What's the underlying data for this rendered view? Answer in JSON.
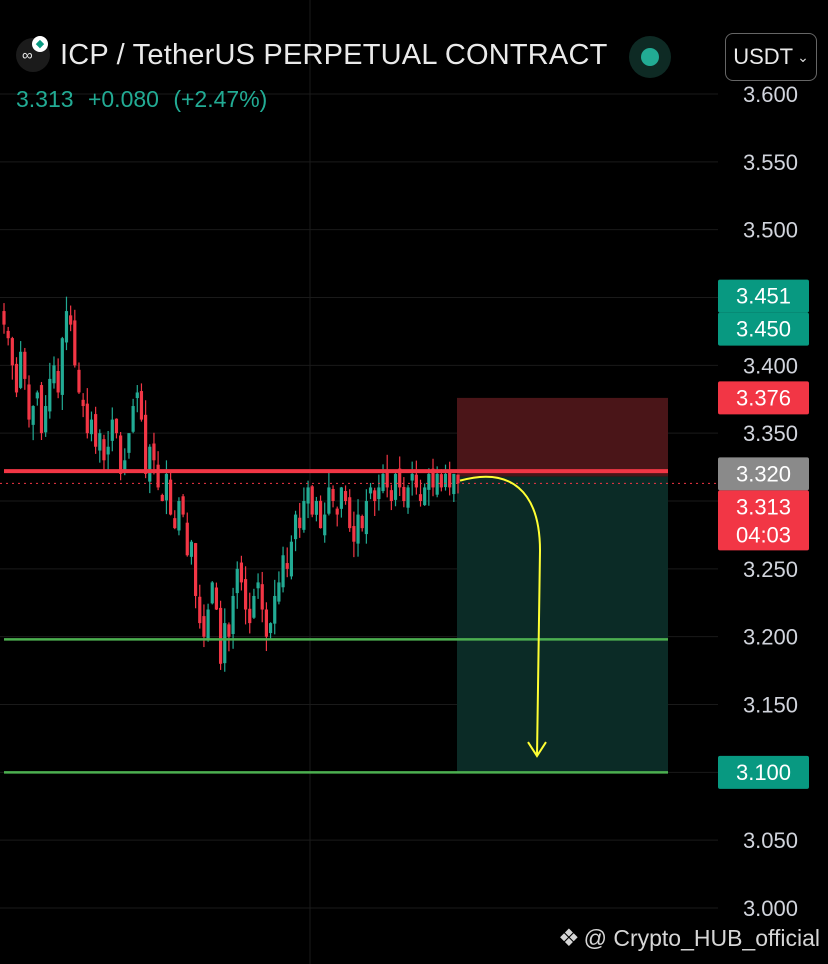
{
  "header": {
    "pair_title": "ICP / TetherUS PERPETUAL CONTRACT",
    "currency": "USDT",
    "last_price": "3.313",
    "change": "+0.080",
    "change_pct": "(+2.47%)"
  },
  "watermark": "@ Crypto_HUB_official",
  "colors": {
    "background": "#000000",
    "up": "#22ab94",
    "down": "#f23645",
    "target_line": "#4caf50",
    "arrow": "#ffff33",
    "risk_zone": "#4a1518",
    "reward_zone": "#0b2b26"
  },
  "chart_data": {
    "type": "candlestick",
    "y_axis": {
      "ylim": [
        3.0,
        3.62
      ],
      "ticks": [
        "3.000",
        "3.050",
        "3.100",
        "3.150",
        "3.200",
        "3.250",
        "3.300",
        "3.350",
        "3.400",
        "3.450",
        "3.500",
        "3.550",
        "3.600"
      ]
    },
    "price_labels": [
      {
        "value": 3.451,
        "text": "3.451",
        "color": "#089981"
      },
      {
        "value": 3.45,
        "text": "3.450",
        "color": "#089981"
      },
      {
        "value": 3.376,
        "text": "3.376",
        "color": "#f23645"
      },
      {
        "value": 3.32,
        "text": "3.320",
        "color": "#8a8a8a"
      },
      {
        "value": 3.313,
        "text": "3.313",
        "sub": "04:03",
        "color": "#f23645"
      },
      {
        "value": 3.1,
        "text": "3.100",
        "color": "#089981"
      }
    ],
    "lines": [
      {
        "name": "resistance",
        "value": 3.322,
        "color": "#f23645"
      },
      {
        "name": "target-1",
        "value": 3.198,
        "color": "#4caf50"
      },
      {
        "name": "target-2",
        "value": 3.1,
        "color": "#4caf50"
      }
    ],
    "current_price": 3.313,
    "position": {
      "side": "short",
      "entry": 3.318,
      "stop": 3.376,
      "target": 3.1
    },
    "closes": [
      3.43,
      3.42,
      3.4,
      3.38,
      3.41,
      3.39,
      3.36,
      3.37,
      3.38,
      3.35,
      3.37,
      3.39,
      3.4,
      3.38,
      3.42,
      3.44,
      3.43,
      3.4,
      3.38,
      3.37,
      3.35,
      3.36,
      3.34,
      3.35,
      3.33,
      3.34,
      3.36,
      3.35,
      3.32,
      3.33,
      3.35,
      3.37,
      3.38,
      3.36,
      3.32,
      3.34,
      3.33,
      3.31,
      3.3,
      3.32,
      3.29,
      3.28,
      3.3,
      3.29,
      3.26,
      3.27,
      3.23,
      3.21,
      3.2,
      3.22,
      3.24,
      3.22,
      3.18,
      3.21,
      3.2,
      3.23,
      3.25,
      3.24,
      3.22,
      3.21,
      3.23,
      3.24,
      3.22,
      3.2,
      3.21,
      3.23,
      3.24,
      3.26,
      3.25,
      3.27,
      3.29,
      3.28,
      3.3,
      3.31,
      3.29,
      3.3,
      3.28,
      3.29,
      3.31,
      3.3,
      3.29,
      3.31,
      3.3,
      3.28,
      3.27,
      3.29,
      3.28,
      3.3,
      3.31,
      3.3,
      3.31,
      3.32,
      3.31,
      3.3,
      3.32,
      3.31,
      3.3,
      3.31,
      3.32,
      3.31,
      3.3,
      3.31,
      3.32,
      3.31,
      3.32,
      3.31,
      3.32,
      3.31,
      3.32,
      3.313
    ],
    "candle_x_range": [
      4,
      458
    ]
  }
}
